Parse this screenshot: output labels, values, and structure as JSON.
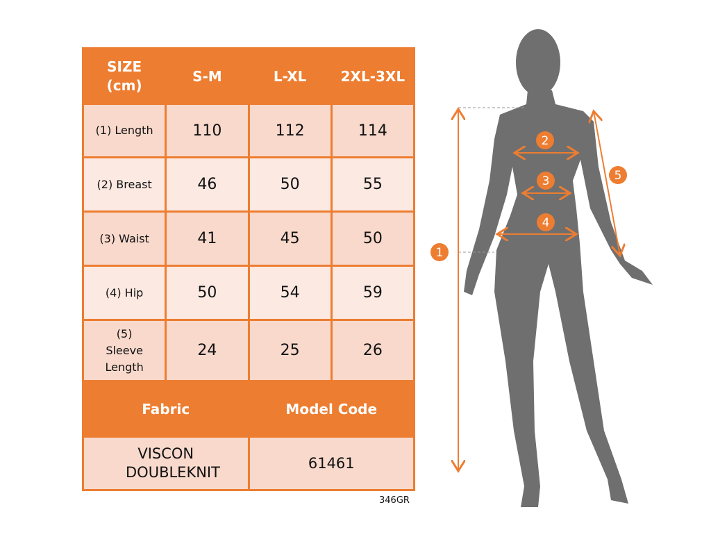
{
  "table": {
    "header": [
      "SIZE (cm)",
      "S-M",
      "L-XL",
      "2XL-3XL"
    ],
    "rows": [
      {
        "label": "(1) Length",
        "values": [
          "110",
          "112",
          "114"
        ]
      },
      {
        "label": "(2) Breast",
        "values": [
          "46",
          "50",
          "55"
        ]
      },
      {
        "label": "(3) Waist",
        "values": [
          "41",
          "45",
          "50"
        ]
      },
      {
        "label": "(4) Hip",
        "values": [
          "50",
          "54",
          "59"
        ]
      },
      {
        "label": "(5) Sleeve Length",
        "values": [
          "24",
          "25",
          "26"
        ]
      }
    ],
    "fabric_label": "Fabric",
    "model_code_label": "Model Code",
    "fabric_value": "VISCON DOUBLEKNIT",
    "model_code_value": "61461"
  },
  "footer_code": "346GR",
  "figure": {
    "markers": [
      "1",
      "2",
      "3",
      "4",
      "5"
    ]
  },
  "colors": {
    "accent": "#ed7d31",
    "row_dark": "#f8d9cc",
    "row_light": "#fbe9e2",
    "silhouette": "#6f6f6f"
  }
}
